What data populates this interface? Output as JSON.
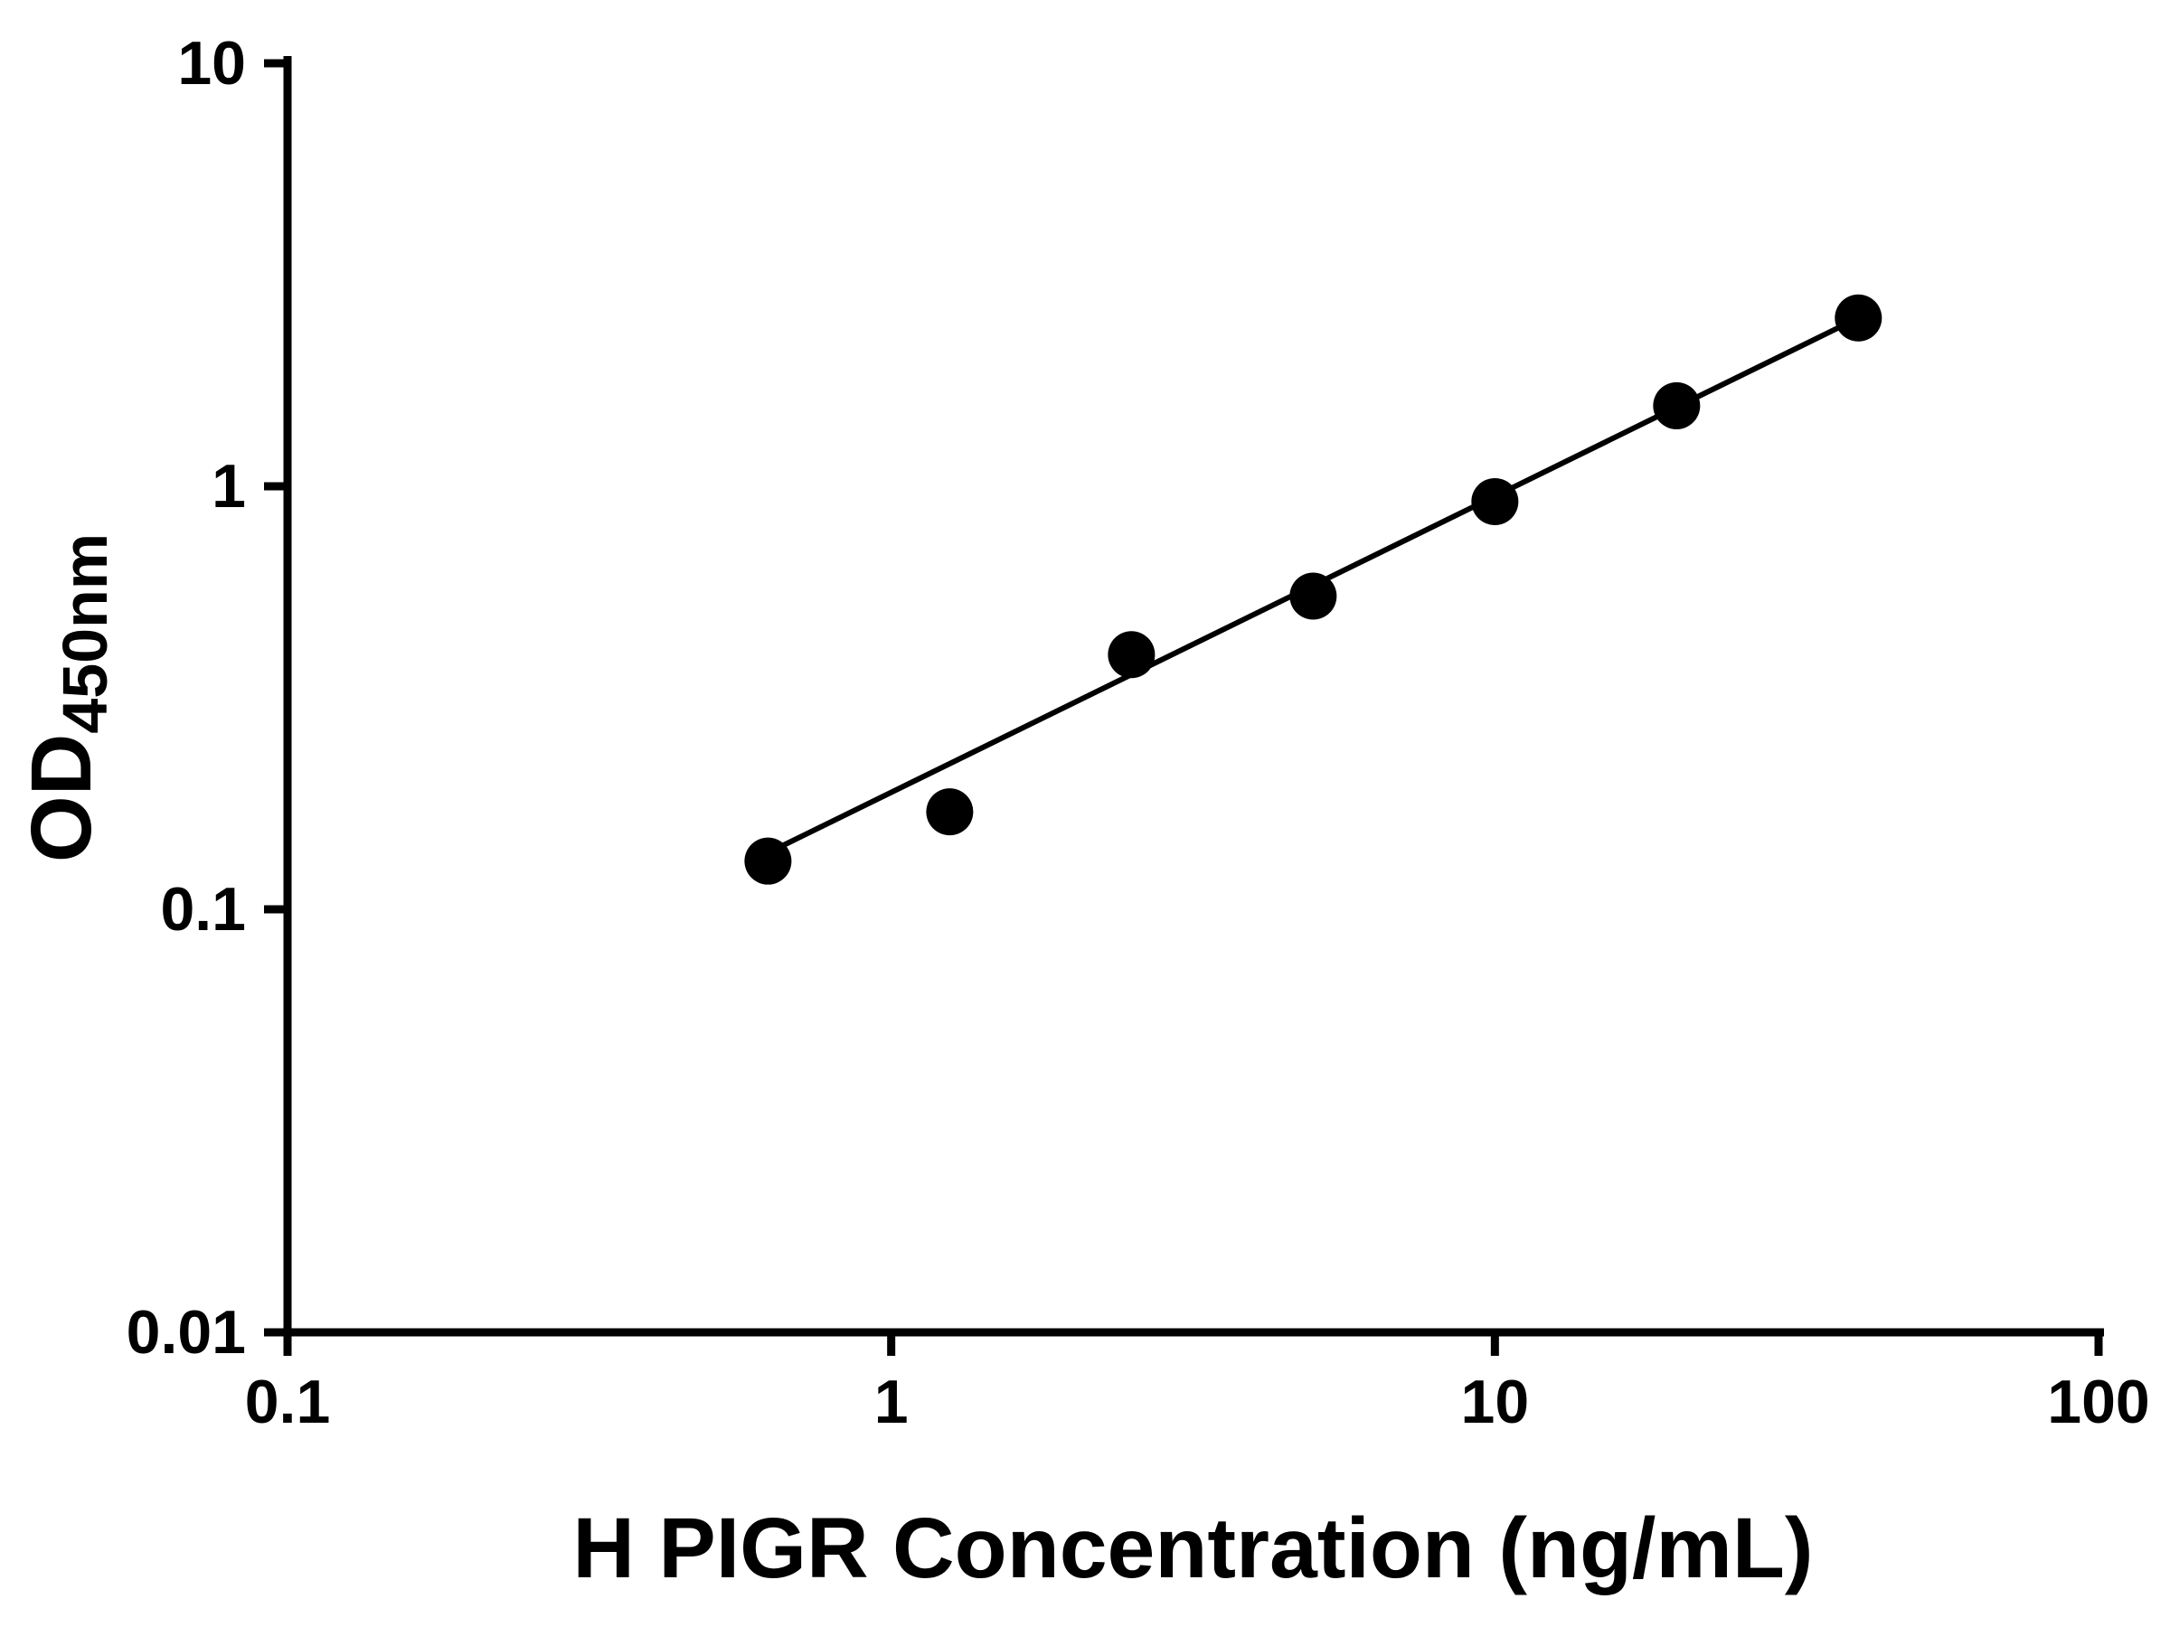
{
  "chart_data": {
    "type": "scatter",
    "title": "",
    "xlabel": "H PIGR Concentration (ng/mL)",
    "ylabel_main": "OD",
    "ylabel_sub": "450nm",
    "xscale": "log",
    "yscale": "log",
    "xlim": [
      0.1,
      100
    ],
    "ylim": [
      0.01,
      10
    ],
    "grid": false,
    "legend": "none",
    "x": [
      0.625,
      1.25,
      2.5,
      5,
      10,
      20,
      40
    ],
    "y": [
      0.13,
      0.17,
      0.4,
      0.55,
      0.92,
      1.55,
      2.5
    ],
    "x_tick_values": [
      0.1,
      1,
      10,
      100
    ],
    "x_ticks": [
      "0.1",
      "1",
      "10",
      "100"
    ],
    "y_tick_values": [
      10,
      1,
      0.1,
      0.01
    ],
    "y_ticks": [
      "10",
      "1",
      "0.1",
      "0.01"
    ],
    "trendline": {
      "x1": 0.625,
      "y1": 0.136,
      "x2": 40,
      "y2": 2.5
    },
    "marker_color": "#000000",
    "line_color": "#000000",
    "axis_color": "#000000",
    "background": "#ffffff"
  }
}
